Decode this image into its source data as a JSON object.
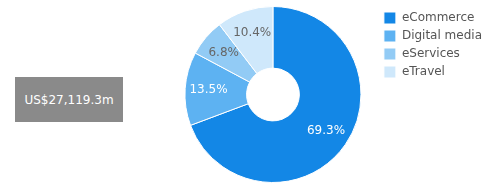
{
  "chart_data": {
    "type": "doughnut",
    "categories": [
      "eCommerce",
      "Digital media",
      "eServices",
      "eTravel"
    ],
    "values": [
      69.3,
      13.5,
      6.8,
      10.4
    ],
    "value_labels": [
      "69.3%",
      "13.5%",
      "6.8%",
      "10.4%"
    ],
    "colors": [
      "#1387e6",
      "#5db2f2",
      "#92cbf5",
      "#cfe8fb"
    ],
    "data_labels": true,
    "legend": "right",
    "annotations": [
      "US$27,119.3m"
    ]
  }
}
